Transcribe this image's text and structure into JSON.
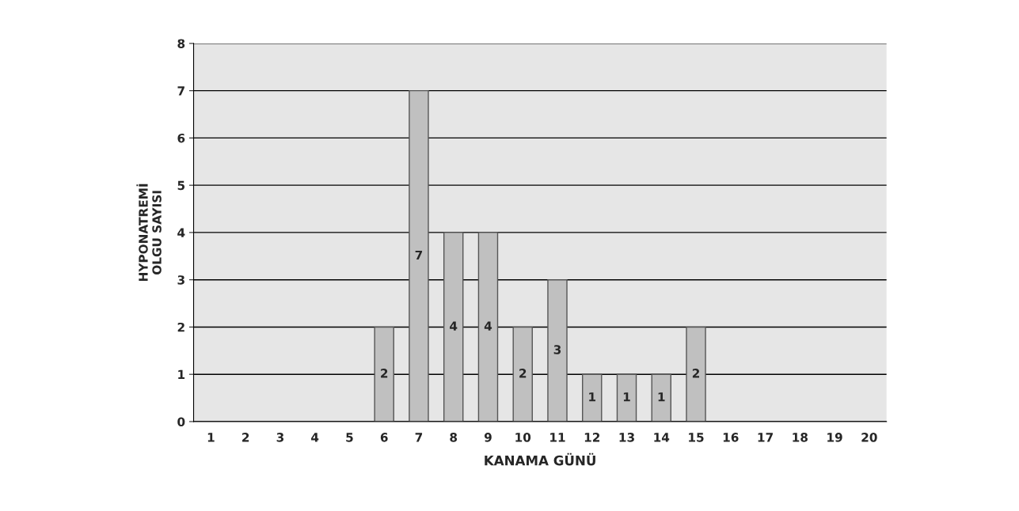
{
  "chart_data": {
    "type": "bar",
    "xlabel": "KANAMA GÜNÜ",
    "ylabel": "HYPONATREMİ\nOLGU SAYISI",
    "categories": [
      "1",
      "2",
      "3",
      "4",
      "5",
      "6",
      "7",
      "8",
      "9",
      "10",
      "11",
      "12",
      "13",
      "14",
      "15",
      "16",
      "17",
      "18",
      "19",
      "20"
    ],
    "values": [
      0,
      0,
      0,
      0,
      0,
      2,
      7,
      4,
      4,
      2,
      3,
      1,
      1,
      1,
      2,
      0,
      0,
      0,
      0,
      0
    ],
    "value_labels": [
      null,
      null,
      null,
      null,
      null,
      "2",
      "7",
      "4",
      "4",
      "2",
      "3",
      "1",
      "1",
      "1",
      "2",
      null,
      null,
      null,
      null,
      null
    ],
    "color": "#c0c0c0",
    "ylim": [
      0,
      8
    ],
    "yticks": [
      0,
      1,
      2,
      3,
      4,
      5,
      6,
      7,
      8
    ],
    "grid": "y"
  }
}
